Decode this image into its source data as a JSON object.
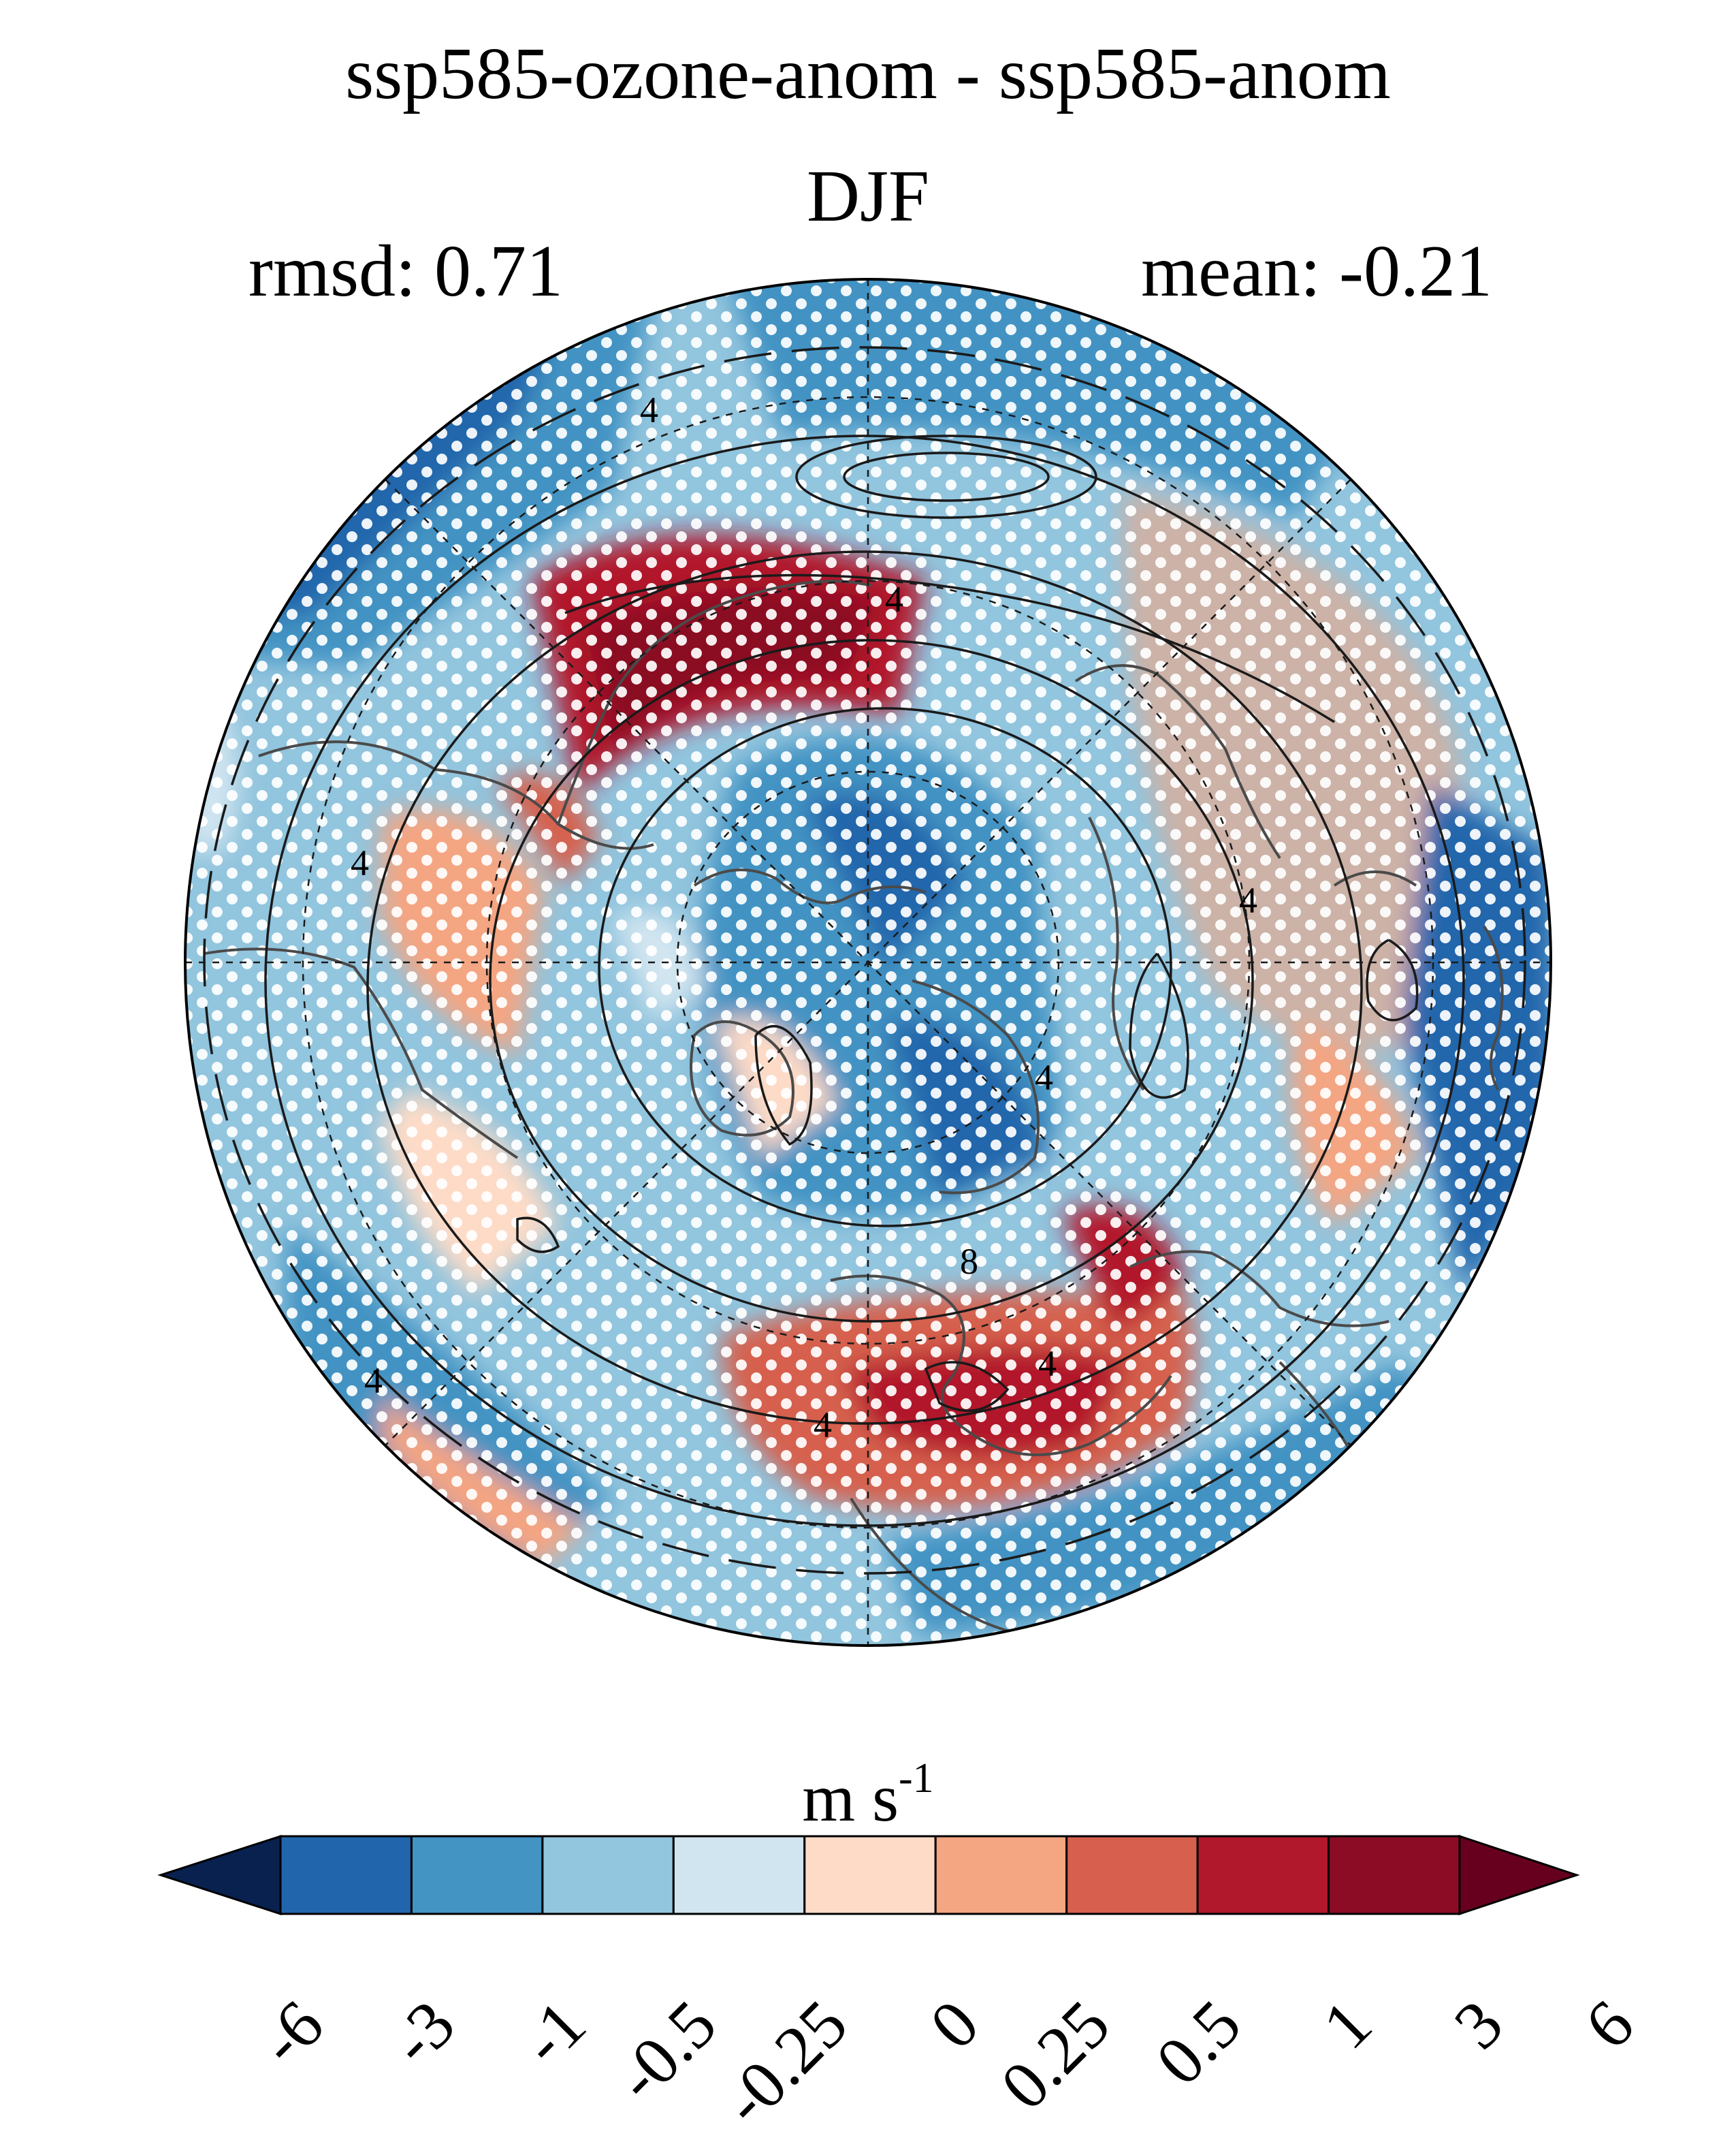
{
  "figure": {
    "title_line1": "ssp585-ozone-anom - ssp585-anom",
    "title_line2": "DJF",
    "rmsd_label": "rmsd: 0.71",
    "mean_label": "mean: -0.21"
  },
  "map": {
    "projection": "north-polar-stereographic",
    "field": "wind speed anomaly difference",
    "overlays": [
      "filled-contours",
      "climatology-contour-lines",
      "significance-stippling",
      "coastlines",
      "lat-lon-graticule"
    ],
    "contour_labels": [
      "4",
      "4",
      "4",
      "4",
      "4",
      "4",
      "4",
      "4",
      "8"
    ]
  },
  "colorbar": {
    "units_base": "m s",
    "units_exp": "-1",
    "ticks": [
      "-6",
      "-3",
      "-1",
      "-0.5",
      "-0.25",
      "0",
      "0.25",
      "0.5",
      "1",
      "3",
      "6"
    ],
    "colors": [
      "#08214f",
      "#2166ac",
      "#4393c3",
      "#92c5de",
      "#d1e5f0",
      "#fddbc7",
      "#f4a582",
      "#d6604d",
      "#b2182b",
      "#8b0c24",
      "#67001f"
    ]
  }
}
